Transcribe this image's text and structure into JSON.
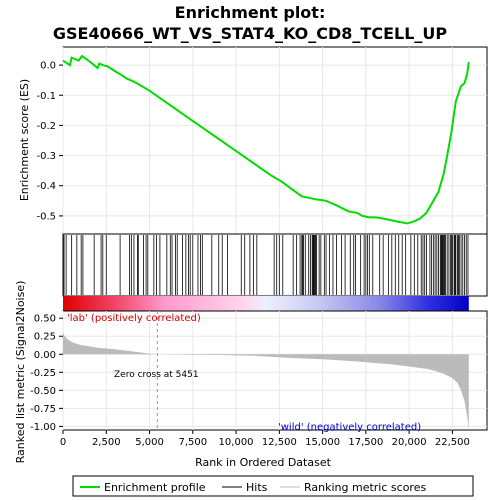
{
  "chart_data": {
    "type": "line",
    "title_line1": "Enrichment plot:",
    "title_line2": "GSE40666_WT_VS_STAT4_KO_CD8_TCELL_UP",
    "xlabel": "Rank in Ordered Dataset",
    "ylabel_top": "Enrichment score (ES)",
    "ylabel_bottom": "Ranked list metric (Signal2Noise)",
    "xlim": [
      0,
      24500
    ],
    "x_ticks": [
      0,
      2500,
      5000,
      7500,
      10000,
      12500,
      15000,
      17500,
      20000,
      22500
    ],
    "x_tick_labels": [
      "0",
      "2,500",
      "5,000",
      "7,500",
      "10,000",
      "12,500",
      "15,000",
      "17,500",
      "20,000",
      "22,500"
    ],
    "es_ylim": [
      -0.56,
      0.06
    ],
    "es_ticks": [
      0.0,
      -0.1,
      -0.2,
      -0.3,
      -0.4,
      -0.5
    ],
    "es_tick_labels": [
      "0.0",
      "-0.1",
      "-0.2",
      "-0.3",
      "-0.4",
      "-0.5"
    ],
    "metric_ylim": [
      -1.05,
      0.6
    ],
    "metric_ticks": [
      0.5,
      0.25,
      0.0,
      -0.25,
      -0.5,
      -0.75,
      -1.0
    ],
    "metric_tick_labels": [
      "0.50",
      "0.25",
      "0.00",
      "-0.25",
      "-0.50",
      "-0.75",
      "-1.00"
    ],
    "es_curve": {
      "x": [
        0,
        400,
        500,
        900,
        1100,
        1400,
        1700,
        2000,
        2100,
        2300,
        2600,
        3000,
        3300,
        3700,
        4100,
        4500,
        5000,
        6000,
        7000,
        8000,
        9000,
        10000,
        11000,
        12000,
        12600,
        13200,
        13800,
        14200,
        14600,
        15200,
        15800,
        16500,
        17000,
        17300,
        17700,
        18100,
        18600,
        19000,
        19400,
        19900,
        20200,
        20600,
        21000,
        21400,
        21700,
        22000,
        22200,
        22450,
        22700,
        23000,
        23200,
        23350,
        23450
      ],
      "y": [
        0.015,
        0.0,
        0.025,
        0.015,
        0.03,
        0.018,
        0.005,
        -0.01,
        0.005,
        0.0,
        -0.005,
        -0.02,
        -0.03,
        -0.045,
        -0.055,
        -0.068,
        -0.085,
        -0.125,
        -0.165,
        -0.205,
        -0.245,
        -0.285,
        -0.325,
        -0.365,
        -0.385,
        -0.41,
        -0.435,
        -0.44,
        -0.445,
        -0.45,
        -0.465,
        -0.485,
        -0.49,
        -0.5,
        -0.505,
        -0.505,
        -0.51,
        -0.515,
        -0.52,
        -0.525,
        -0.52,
        -0.51,
        -0.49,
        -0.45,
        -0.42,
        -0.36,
        -0.3,
        -0.22,
        -0.12,
        -0.07,
        -0.06,
        -0.03,
        0.01
      ]
    },
    "hits": [
      60,
      180,
      500,
      800,
      1050,
      1150,
      1800,
      2200,
      2300,
      2500,
      3300,
      3850,
      3950,
      4100,
      4300,
      4350,
      4650,
      4800,
      4900,
      5250,
      5400,
      5600,
      6000,
      6200,
      6300,
      6500,
      6600,
      6900,
      7100,
      7250,
      7350,
      7500,
      7800,
      7950,
      8050,
      8600,
      9000,
      9200,
      9500,
      10300,
      10500,
      10800,
      11000,
      11200,
      12200,
      12350,
      12500,
      12700,
      13300,
      13500,
      13700,
      13800,
      13850,
      13900,
      14000,
      14200,
      14300,
      14400,
      14450,
      14500,
      14550,
      14600,
      14650,
      14800,
      14900,
      15100,
      15200,
      15400,
      15600,
      15800,
      16100,
      16300,
      16600,
      16800,
      16900,
      17200,
      17400,
      17500,
      17600,
      17700,
      17900,
      18300,
      18500,
      18800,
      19000,
      19200,
      19400,
      19600,
      19800,
      20100,
      20300,
      20500,
      20700,
      20800,
      20900,
      21000,
      21200,
      21300,
      21400,
      21500,
      21600,
      21700,
      21800,
      21850,
      21900,
      21950,
      22000,
      22050,
      22100,
      22200,
      22300,
      22400,
      22450,
      22500,
      22600,
      22650,
      22700,
      22800,
      22850,
      22900,
      23000,
      23100,
      23200,
      23300,
      23400
    ],
    "metric_curve": {
      "x": [
        0,
        100,
        300,
        600,
        1000,
        1500,
        2000,
        3000,
        4000,
        5000,
        5451,
        7000,
        9000,
        11000,
        13000,
        15000,
        17000,
        19000,
        20000,
        21000,
        21500,
        22000,
        22500,
        22800,
        23000,
        23200,
        23350,
        23450
      ],
      "y": [
        0.3,
        0.25,
        0.2,
        0.16,
        0.13,
        0.11,
        0.09,
        0.07,
        0.04,
        0.01,
        0.0,
        -0.005,
        -0.01,
        -0.02,
        -0.05,
        -0.07,
        -0.1,
        -0.14,
        -0.17,
        -0.2,
        -0.23,
        -0.27,
        -0.33,
        -0.4,
        -0.5,
        -0.65,
        -0.85,
        -1.05
      ]
    },
    "total_genes": 23450,
    "zero_cross_x": 5451,
    "annotations": {
      "positive": "'lab' (positively correlated)",
      "negative": "'wild' (negatively correlated)",
      "zero_cross": "Zero cross at 5451"
    },
    "legend": [
      {
        "label": "Enrichment profile",
        "color": "#00dd00"
      },
      {
        "label": "Hits",
        "color": "#000000"
      },
      {
        "label": "Ranking metric scores",
        "color": "#bbbbbb"
      }
    ],
    "colors": {
      "es_line": "#00dd00",
      "hit": "#000000",
      "metric_fill": "#bbbbbb",
      "grid": "#e8e8e8",
      "zero_line": "#888888"
    }
  }
}
